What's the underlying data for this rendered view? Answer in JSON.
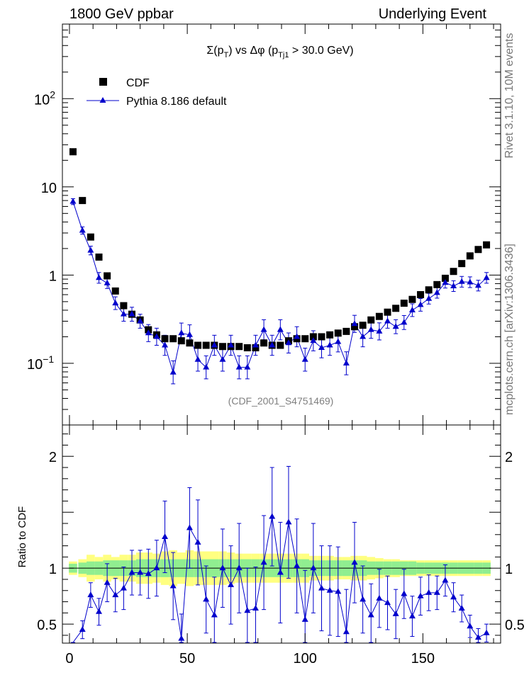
{
  "header": {
    "left": "1800 GeV ppbar",
    "right": "Underlying Event"
  },
  "side_labels": {
    "rivet": "Rivet 3.1.10,  10M events",
    "mcplots": "mcplots.cern.ch [arXiv:1306.3436]"
  },
  "colors": {
    "data_marker": "#000000",
    "mc_line": "#0000cc",
    "band_inner": "#90ee90",
    "band_outer": "#ffff80"
  },
  "chart_data": [
    {
      "type": "scatter",
      "panel": "main",
      "title": "Σ(p_T) vs Δφ (p_Tj1 > 30.0 GeV)",
      "title_parts": {
        "sigma": "Σ(p",
        "sub_t": "T",
        "mid": ") vs Δφ (p",
        "sub_tj1": "Tj1",
        "tail": " > 30.0 GeV)"
      },
      "watermark": "(CDF_2001_S4751469)",
      "xlim": [
        -3,
        183
      ],
      "ylim": [
        0.02,
        700
      ],
      "yscale": "log",
      "y_tick_labels": [
        {
          "value": 0.1,
          "base": "10",
          "exp": "−1"
        },
        {
          "value": 1,
          "base": "1",
          "exp": ""
        },
        {
          "value": 10,
          "base": "10",
          "exp": ""
        },
        {
          "value": 100,
          "base": "10",
          "exp": "2"
        }
      ],
      "legend_position": "top-left",
      "series": [
        {
          "name": "CDF",
          "marker": "square",
          "x": [
            1.5,
            5.5,
            9.0,
            12.5,
            16.0,
            19.5,
            23.0,
            26.5,
            30.0,
            33.5,
            37.0,
            40.5,
            44.0,
            47.5,
            51.0,
            54.5,
            58.0,
            61.5,
            65.0,
            68.5,
            72.0,
            75.5,
            79.0,
            82.5,
            86.0,
            89.5,
            93.0,
            96.5,
            100.0,
            103.5,
            107.0,
            110.5,
            114.0,
            117.5,
            121.0,
            124.5,
            128.0,
            131.5,
            135.0,
            138.5,
            142.0,
            145.5,
            149.0,
            152.5,
            156.0,
            159.5,
            163.0,
            166.5,
            170.0,
            173.5,
            177.0
          ],
          "y": [
            25,
            7.0,
            2.7,
            1.6,
            0.98,
            0.66,
            0.45,
            0.36,
            0.31,
            0.24,
            0.21,
            0.19,
            0.19,
            0.18,
            0.17,
            0.16,
            0.16,
            0.16,
            0.155,
            0.155,
            0.155,
            0.15,
            0.15,
            0.17,
            0.16,
            0.16,
            0.18,
            0.19,
            0.19,
            0.2,
            0.2,
            0.21,
            0.22,
            0.23,
            0.26,
            0.27,
            0.31,
            0.34,
            0.38,
            0.42,
            0.48,
            0.53,
            0.6,
            0.68,
            0.78,
            0.92,
            1.1,
            1.35,
            1.65,
            1.95,
            2.2
          ]
        },
        {
          "name": "Pythia 8.186 default",
          "marker": "triangle",
          "x": [
            1.5,
            5.5,
            9.0,
            12.5,
            16.0,
            19.5,
            23.0,
            26.5,
            30.0,
            33.5,
            37.0,
            40.5,
            44.0,
            47.5,
            51.0,
            54.5,
            58.0,
            61.5,
            65.0,
            68.5,
            72.0,
            75.5,
            79.0,
            82.5,
            86.0,
            89.5,
            93.0,
            96.5,
            100.0,
            103.5,
            107.0,
            110.5,
            114.0,
            117.5,
            121.0,
            124.5,
            128.0,
            131.5,
            135.0,
            138.5,
            142.0,
            145.5,
            149.0,
            152.5,
            156.0,
            159.5,
            163.0,
            166.5,
            170.0,
            173.5,
            177.0
          ],
          "y": [
            6.8,
            3.2,
            1.9,
            0.93,
            0.81,
            0.48,
            0.36,
            0.36,
            0.3,
            0.22,
            0.2,
            0.16,
            0.079,
            0.22,
            0.21,
            0.11,
            0.09,
            0.16,
            0.11,
            0.16,
            0.09,
            0.09,
            0.16,
            0.24,
            0.16,
            0.24,
            0.17,
            0.2,
            0.11,
            0.18,
            0.15,
            0.16,
            0.175,
            0.1,
            0.28,
            0.2,
            0.24,
            0.23,
            0.3,
            0.26,
            0.29,
            0.4,
            0.46,
            0.54,
            0.63,
            0.82,
            0.75,
            0.84,
            0.83,
            0.76,
            0.93
          ],
          "yerr_factor": [
            1.08,
            1.1,
            1.12,
            1.15,
            1.15,
            1.18,
            1.2,
            1.2,
            1.2,
            1.25,
            1.25,
            1.3,
            1.35,
            1.3,
            1.3,
            1.35,
            1.35,
            1.3,
            1.35,
            1.3,
            1.35,
            1.35,
            1.3,
            1.3,
            1.3,
            1.3,
            1.3,
            1.3,
            1.35,
            1.3,
            1.3,
            1.3,
            1.3,
            1.35,
            1.25,
            1.3,
            1.25,
            1.25,
            1.2,
            1.2,
            1.2,
            1.18,
            1.18,
            1.15,
            1.15,
            1.15,
            1.15,
            1.15,
            1.15,
            1.15,
            1.15
          ]
        }
      ]
    },
    {
      "type": "scatter",
      "panel": "ratio",
      "ylabel": "Ratio to CDF",
      "xlim": [
        -3,
        183
      ],
      "ylim": [
        0.33,
        2.28
      ],
      "x_tick_labels": [
        0,
        50,
        100,
        150
      ],
      "y_tick_labels": [
        0.5,
        1,
        2
      ],
      "y_tick_text": [
        "0.5",
        "1",
        "2"
      ],
      "band": {
        "x": [
          1.5,
          5.5,
          9.0,
          12.5,
          16.0,
          19.5,
          23.0,
          26.5,
          30.0,
          33.5,
          37.0,
          40.5,
          44.0,
          47.5,
          51.0,
          54.5,
          58.0,
          61.5,
          65.0,
          68.5,
          72.0,
          75.5,
          79.0,
          82.5,
          86.0,
          89.5,
          93.0,
          96.5,
          100.0,
          103.5,
          107.0,
          110.5,
          114.0,
          117.5,
          121.0,
          124.5,
          128.0,
          131.5,
          135.0,
          138.5,
          142.0,
          145.5,
          149.0,
          152.5,
          156.0,
          159.5,
          163.0,
          166.5,
          170.0,
          173.5,
          177.0
        ],
        "inner": [
          0.04,
          0.05,
          0.06,
          0.06,
          0.07,
          0.07,
          0.07,
          0.07,
          0.08,
          0.08,
          0.08,
          0.08,
          0.08,
          0.08,
          0.08,
          0.08,
          0.08,
          0.08,
          0.08,
          0.08,
          0.08,
          0.08,
          0.08,
          0.08,
          0.08,
          0.08,
          0.08,
          0.08,
          0.08,
          0.07,
          0.07,
          0.07,
          0.07,
          0.07,
          0.07,
          0.07,
          0.06,
          0.06,
          0.06,
          0.06,
          0.06,
          0.06,
          0.05,
          0.05,
          0.05,
          0.05,
          0.05,
          0.05,
          0.05,
          0.05,
          0.05
        ],
        "outer": [
          0.06,
          0.08,
          0.12,
          0.1,
          0.12,
          0.1,
          0.12,
          0.12,
          0.14,
          0.14,
          0.13,
          0.15,
          0.16,
          0.14,
          0.16,
          0.15,
          0.15,
          0.15,
          0.15,
          0.14,
          0.13,
          0.13,
          0.13,
          0.13,
          0.13,
          0.13,
          0.13,
          0.13,
          0.13,
          0.11,
          0.11,
          0.11,
          0.1,
          0.1,
          0.11,
          0.11,
          0.1,
          0.09,
          0.08,
          0.08,
          0.07,
          0.07,
          0.07,
          0.07,
          0.07,
          0.07,
          0.07,
          0.07,
          0.07,
          0.07,
          0.07
        ]
      },
      "series": [
        {
          "name": "Pythia 8.186 default",
          "x": [
            1.5,
            5.5,
            9.0,
            12.5,
            16.0,
            19.5,
            23.0,
            26.5,
            30.0,
            33.5,
            37.0,
            40.5,
            44.0,
            47.5,
            51.0,
            54.5,
            58.0,
            61.5,
            65.0,
            68.5,
            72.0,
            75.5,
            79.0,
            82.5,
            86.0,
            89.5,
            93.0,
            96.5,
            100.0,
            103.5,
            107.0,
            110.5,
            114.0,
            117.5,
            121.0,
            124.5,
            128.0,
            131.5,
            135.0,
            138.5,
            142.0,
            145.5,
            149.0,
            152.5,
            156.0,
            159.5,
            163.0,
            166.5,
            170.0,
            173.5,
            177.0
          ],
          "y": [
            0.27,
            0.45,
            0.76,
            0.61,
            0.87,
            0.76,
            0.82,
            0.96,
            0.96,
            0.95,
            1.0,
            1.28,
            0.84,
            0.37,
            1.36,
            1.23,
            0.72,
            0.58,
            1.0,
            0.85,
            1.0,
            0.62,
            0.64,
            1.05,
            1.46,
            0.96,
            1.41,
            1.02,
            0.54,
            1.0,
            0.82,
            0.8,
            0.79,
            0.43,
            1.05,
            0.72,
            0.58,
            0.73,
            0.69,
            0.59,
            0.77,
            0.57,
            0.75,
            0.78,
            0.78,
            0.89,
            0.74,
            0.64,
            0.48,
            0.38,
            0.42
          ],
          "yerr": [
            0.06,
            0.08,
            0.11,
            0.12,
            0.17,
            0.15,
            0.19,
            0.2,
            0.2,
            0.22,
            0.25,
            0.32,
            0.3,
            0.22,
            0.36,
            0.38,
            0.3,
            0.34,
            0.35,
            0.35,
            0.4,
            0.38,
            0.37,
            0.42,
            0.44,
            0.45,
            0.5,
            0.42,
            0.44,
            0.4,
            0.38,
            0.4,
            0.4,
            0.38,
            0.36,
            0.3,
            0.28,
            0.26,
            0.24,
            0.22,
            0.22,
            0.18,
            0.17,
            0.16,
            0.15,
            0.14,
            0.13,
            0.12,
            0.1,
            0.08,
            0.08
          ]
        }
      ]
    }
  ]
}
